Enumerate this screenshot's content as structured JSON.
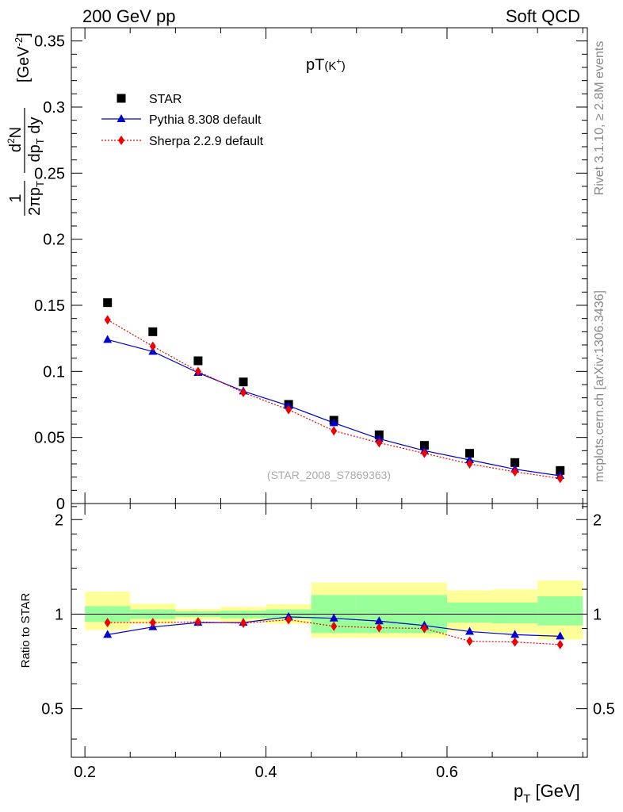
{
  "header": {
    "left": "200 GeV pp",
    "right": "Soft QCD"
  },
  "side": {
    "rivet": "Rivet 3.1.10, ≥ 2.8M events",
    "mcplots": "mcplots.cern.ch [arXiv:1306.3436]"
  },
  "chart_data": {
    "type": "scatter",
    "title": "pT(K⁺)",
    "watermark": "(STAR_2008_S7869363)",
    "xlabel": "p_T [GeV]",
    "ylabel": "1/(2π p_T) d²N/(dp_T dy) [GeV⁻²]",
    "ratio_ylabel": "Ratio to STAR",
    "xlim": [
      0.185,
      0.755
    ],
    "ylim": [
      0,
      0.36
    ],
    "ratio_ylim": [
      0.35,
      2.25
    ],
    "ratio_ylog": true,
    "x_ticks": [
      "0.2",
      "0.4",
      "0.6"
    ],
    "y_ticks": [
      "0",
      "0.05",
      "0.1",
      "0.15",
      "0.2",
      "0.25",
      "0.3",
      "0.35"
    ],
    "ratio_ticks": [
      "0.5",
      "1",
      "2"
    ],
    "x": [
      0.225,
      0.275,
      0.325,
      0.375,
      0.425,
      0.475,
      0.525,
      0.575,
      0.625,
      0.675,
      0.725
    ],
    "bins": [
      0.2,
      0.25,
      0.3,
      0.35,
      0.4,
      0.45,
      0.5,
      0.55,
      0.6,
      0.65,
      0.7,
      0.75
    ],
    "series": [
      {
        "name": "STAR",
        "color": "#000000",
        "marker": "square",
        "values": [
          0.152,
          0.13,
          0.108,
          0.092,
          0.075,
          0.063,
          0.052,
          0.044,
          0.038,
          0.031,
          0.025
        ]
      },
      {
        "name": "Pythia 8.308 default",
        "color": "#0000cc",
        "marker": "triangle",
        "line": "solid",
        "values": [
          0.124,
          0.115,
          0.099,
          0.085,
          0.074,
          0.061,
          0.049,
          0.04,
          0.033,
          0.026,
          0.021
        ],
        "ratio": [
          0.86,
          0.91,
          0.94,
          0.94,
          0.98,
          0.97,
          0.95,
          0.92,
          0.88,
          0.86,
          0.85
        ]
      },
      {
        "name": "Sherpa 2.2.9 default",
        "color": "#ee0000",
        "marker": "diamond",
        "line": "dotted",
        "values": [
          0.139,
          0.119,
          0.1,
          0.084,
          0.071,
          0.055,
          0.046,
          0.038,
          0.03,
          0.024,
          0.019
        ],
        "ratio": [
          0.94,
          0.94,
          0.945,
          0.935,
          0.96,
          0.915,
          0.905,
          0.9,
          0.82,
          0.815,
          0.8
        ]
      }
    ],
    "ratio_bands": {
      "green": [
        [
          0.945,
          1.06
        ],
        [
          0.965,
          1.035
        ],
        [
          0.98,
          1.02
        ],
        [
          0.97,
          1.025
        ],
        [
          0.965,
          1.035
        ],
        [
          0.87,
          1.15
        ],
        [
          0.87,
          1.15
        ],
        [
          0.87,
          1.15
        ],
        [
          0.94,
          1.09
        ],
        [
          0.935,
          1.09
        ],
        [
          0.92,
          1.14
        ]
      ],
      "yellow": [
        [
          0.89,
          1.18
        ],
        [
          0.93,
          1.08
        ],
        [
          0.96,
          1.04
        ],
        [
          0.945,
          1.055
        ],
        [
          0.93,
          1.075
        ],
        [
          0.84,
          1.26
        ],
        [
          0.84,
          1.26
        ],
        [
          0.84,
          1.26
        ],
        [
          0.88,
          1.19
        ],
        [
          0.87,
          1.2
        ],
        [
          0.83,
          1.28
        ]
      ]
    },
    "legend_position": "top-left",
    "grid": false
  }
}
